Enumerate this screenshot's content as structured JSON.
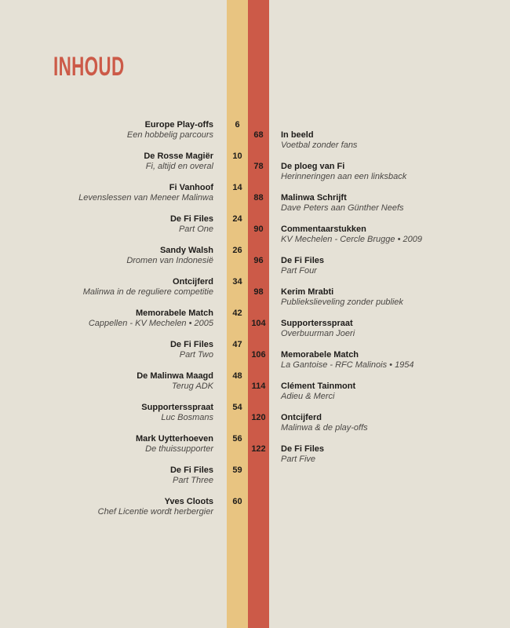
{
  "title": "INHOUD",
  "colors": {
    "background": "#e5e1d6",
    "yellow": "#e8c481",
    "red": "#cc5a48"
  },
  "left_entries": [
    {
      "page": "6",
      "title": "Europe Play-offs",
      "subtitle": "Een hobbelig parcours"
    },
    {
      "page": "10",
      "title": "De Rosse Magiër",
      "subtitle": "Fi, altijd en overal"
    },
    {
      "page": "14",
      "title": "Fi Vanhoof",
      "subtitle": "Levenslessen van Meneer Malinwa"
    },
    {
      "page": "24",
      "title": "De Fi Files",
      "subtitle": "Part One"
    },
    {
      "page": "26",
      "title": "Sandy Walsh",
      "subtitle": "Dromen van Indonesië"
    },
    {
      "page": "34",
      "title": "Ontcijferd",
      "subtitle": "Malinwa in de reguliere competitie"
    },
    {
      "page": "42",
      "title": "Memorabele Match",
      "subtitle": "Cappellen - KV Mechelen • 2005"
    },
    {
      "page": "47",
      "title": "De Fi Files",
      "subtitle": "Part Two"
    },
    {
      "page": "48",
      "title": "De Malinwa Maagd",
      "subtitle": "Terug ADK"
    },
    {
      "page": "54",
      "title": "Supportersspraat",
      "subtitle": "Luc Bosmans"
    },
    {
      "page": "56",
      "title": "Mark Uytterhoeven",
      "subtitle": "De thuissupporter"
    },
    {
      "page": "59",
      "title": "De Fi Files",
      "subtitle": "Part Three"
    },
    {
      "page": "60",
      "title": "Yves Cloots",
      "subtitle": "Chef Licentie wordt herbergier"
    }
  ],
  "right_entries": [
    {
      "page": "68",
      "title": "In beeld",
      "subtitle": "Voetbal zonder fans"
    },
    {
      "page": "78",
      "title": "De ploeg van Fi",
      "subtitle": "Herinneringen aan een linksback"
    },
    {
      "page": "88",
      "title": "Malinwa Schrijft",
      "subtitle": "Dave Peters aan Günther Neefs"
    },
    {
      "page": "90",
      "title": "Commentaarstukken",
      "subtitle": "KV Mechelen - Cercle Brugge • 2009"
    },
    {
      "page": "96",
      "title": "De Fi Files",
      "subtitle": "Part Four"
    },
    {
      "page": "98",
      "title": "Kerim Mrabti",
      "subtitle": "Publiekslieveling zonder publiek"
    },
    {
      "page": "104",
      "title": "Supportersspraat",
      "subtitle": "Overbuurman Joeri"
    },
    {
      "page": "106",
      "title": "Memorabele Match",
      "subtitle": "La Gantoise - RFC Malinois • 1954"
    },
    {
      "page": "114",
      "title": "Clément Tainmont",
      "subtitle": "Adieu & Merci"
    },
    {
      "page": "120",
      "title": "Ontcijferd",
      "subtitle": "Malinwa & de play-offs"
    },
    {
      "page": "122",
      "title": "De Fi Files",
      "subtitle": "Part Five"
    }
  ]
}
